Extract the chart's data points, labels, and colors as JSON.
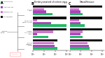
{
  "title_b": "Embryonated chicken egg",
  "title_c": "Nasal/tissue",
  "legend_labels": [
    "Vaccinia virus",
    "Influenza virus",
    "Paramyxovirus",
    "Reovirus/other"
  ],
  "legend_colors": [
    "#22bb66",
    "#aa44bb",
    "#cc77cc",
    "#111111"
  ],
  "bar_colors": [
    "#22bb66",
    "#aa44bb",
    "#cc77cc",
    "#111111"
  ],
  "panel_b": {
    "vaccinia": [
      3000,
      200,
      100,
      1000000
    ],
    "sendai": [
      900000,
      1500,
      5,
      1000000
    ],
    "influenza": [
      500,
      5,
      4000,
      1000000
    ],
    "reovirus": [
      20000,
      8000,
      5000,
      20000
    ]
  },
  "panel_c": {
    "vaccinia": [
      200,
      100,
      50,
      1000000
    ],
    "sendai": [
      500,
      100,
      50,
      1000000
    ],
    "influenza": [
      200,
      100,
      200,
      1000000
    ],
    "reovirus": [
      5000,
      3000,
      2000,
      1000000
    ]
  },
  "xlim": [
    1,
    2000000
  ],
  "xticks_b": [
    1,
    10,
    100,
    1000,
    10000,
    100000,
    1000000
  ],
  "xticks_c": [
    1,
    10,
    100,
    1000,
    10000,
    100000,
    1000000
  ],
  "virus_labels": [
    [
      "Vaccinia",
      "virus"
    ],
    [
      "Sendai virus",
      "(paramyxovirus)"
    ],
    [
      "Influenza",
      "virus/Chick/",
      "Sendai virus",
      "(paramyxovirus)"
    ],
    [
      "Reovirus",
      "(T3/Bat/G/",
      "342/08)"
    ]
  ],
  "virus_names": [
    "vaccinia",
    "sendai",
    "influenza",
    "reovirus"
  ],
  "background_color": "#f5f5f5"
}
